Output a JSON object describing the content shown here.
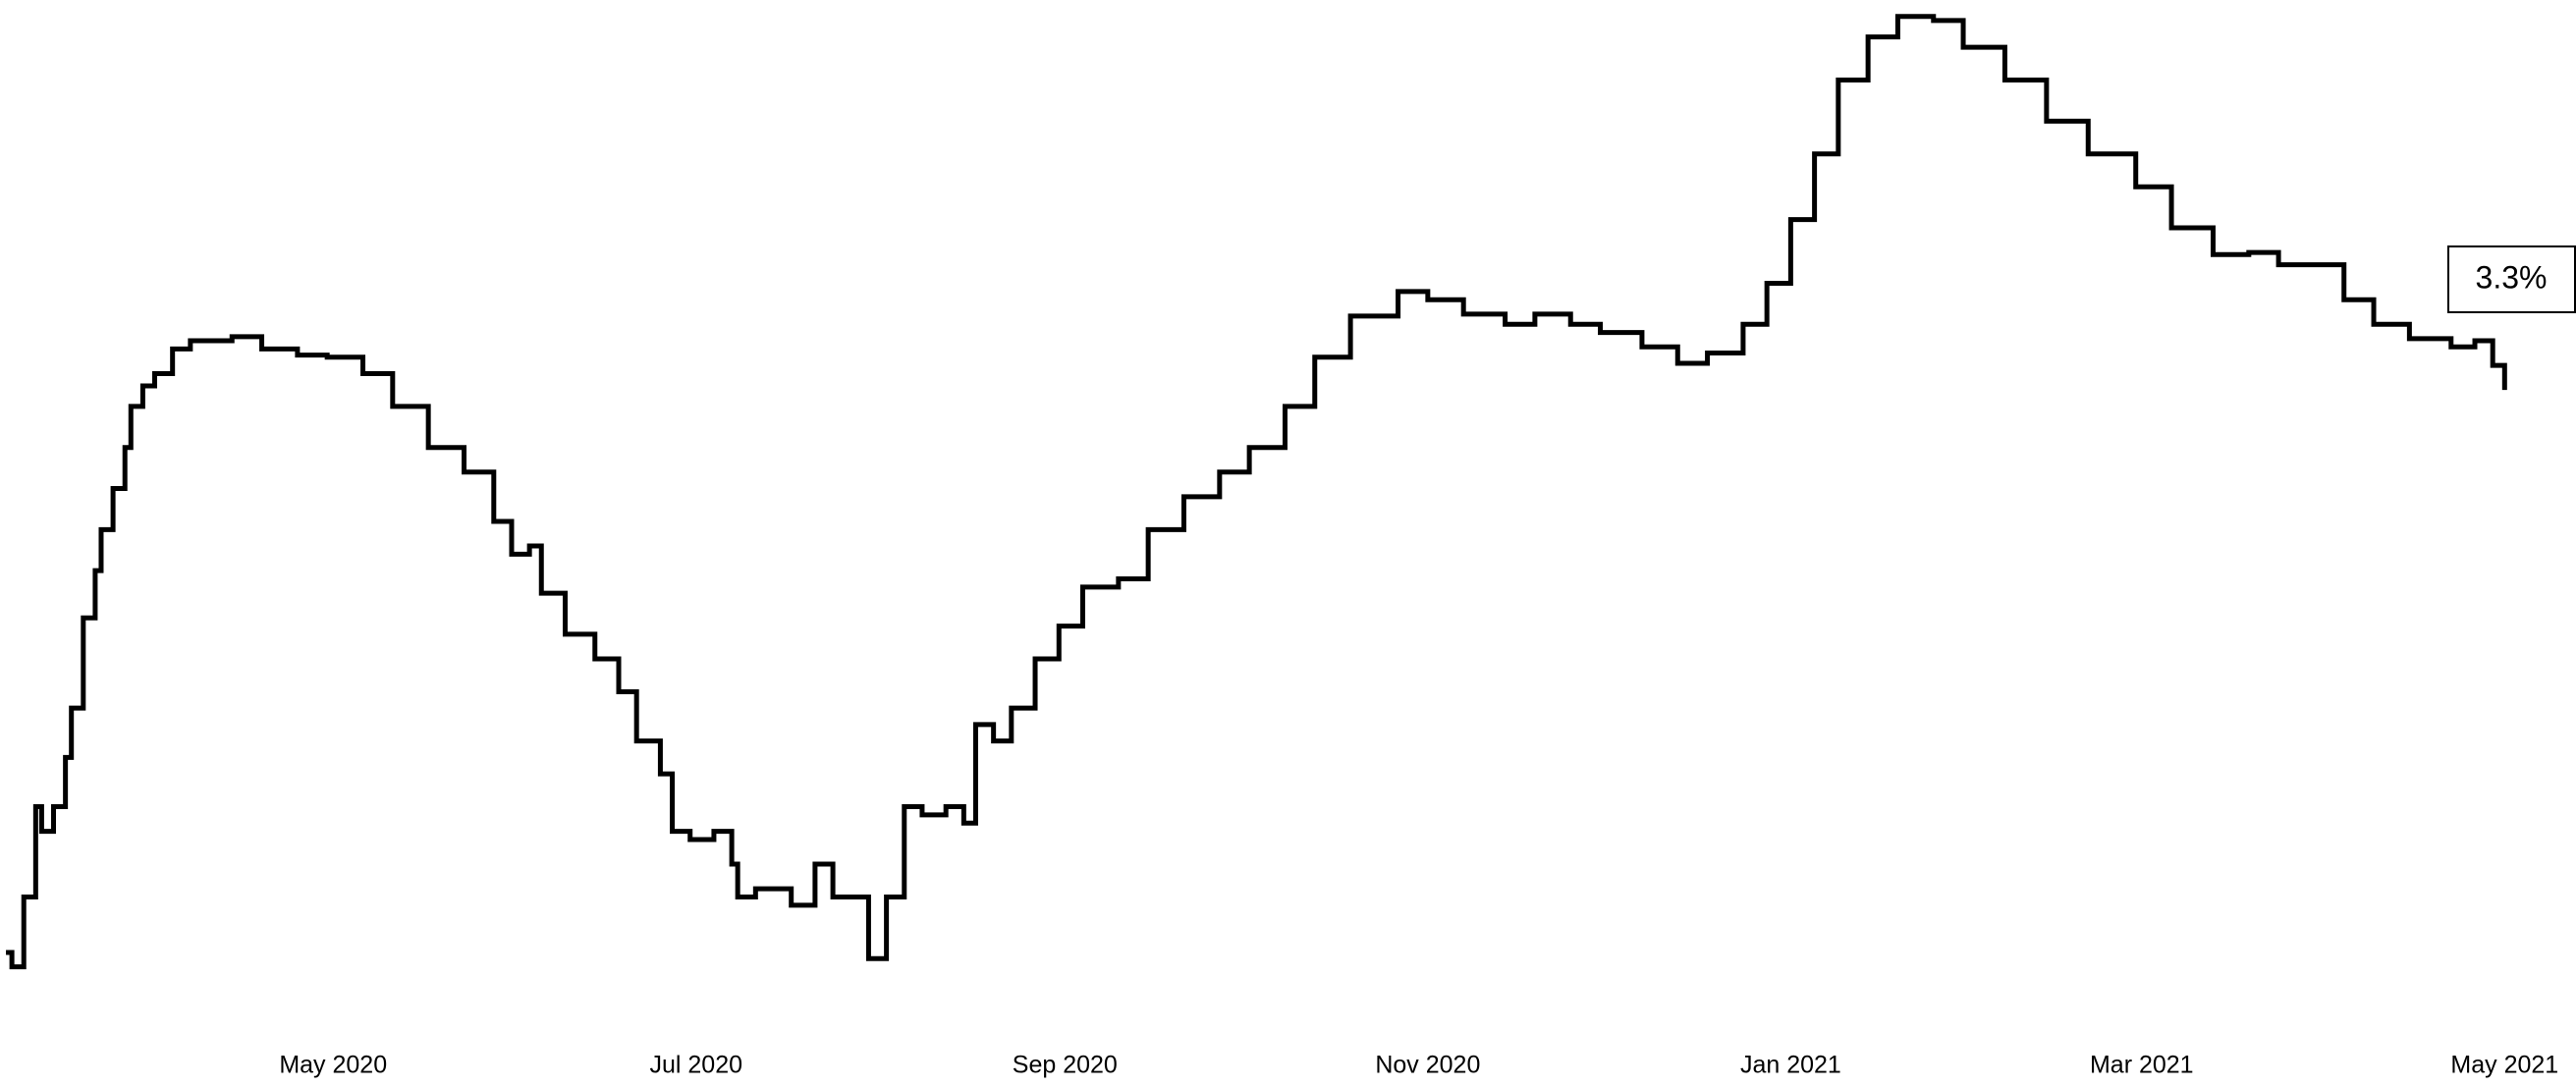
{
  "chart_data": {
    "type": "step",
    "x": [
      -55,
      -54,
      -52,
      -50,
      -49,
      -47,
      -45,
      -44,
      -42,
      -40,
      -39,
      -37,
      -35,
      -34,
      -32,
      -30,
      -27,
      -24,
      -17,
      -12,
      -6,
      -1,
      5,
      10,
      16,
      22,
      27,
      30,
      33,
      35,
      39,
      44,
      48,
      51,
      55,
      57,
      60,
      64,
      67,
      68,
      71,
      74,
      77,
      81,
      84,
      86,
      90,
      93,
      96,
      99,
      103,
      106,
      108,
      111,
      114,
      118,
      122,
      126,
      132,
      137,
      143,
      149,
      154,
      160,
      165,
      171,
      179,
      184,
      190,
      197,
      202,
      208,
      213,
      220,
      226,
      231,
      237,
      241,
      245,
      249,
      253,
      258,
      263,
      269,
      274,
      281,
      288,
      295,
      303,
      309,
      316,
      322,
      327,
      332,
      338,
      343,
      349,
      356,
      360,
      363,
      365
    ],
    "values": [
      0.56,
      0.49,
      0.83,
      1.27,
      1.15,
      1.27,
      1.51,
      1.75,
      2.19,
      2.42,
      2.62,
      2.82,
      3.02,
      3.22,
      3.32,
      3.38,
      3.5,
      3.54,
      3.56,
      3.5,
      3.47,
      3.46,
      3.38,
      3.22,
      3.02,
      2.9,
      2.66,
      2.5,
      2.54,
      2.31,
      2.11,
      1.99,
      1.83,
      1.59,
      1.43,
      1.15,
      1.11,
      1.15,
      0.99,
      0.83,
      0.87,
      0.87,
      0.79,
      0.99,
      0.83,
      0.83,
      0.53,
      0.83,
      1.27,
      1.23,
      1.27,
      1.19,
      1.67,
      1.59,
      1.75,
      1.99,
      2.15,
      2.34,
      2.38,
      2.62,
      2.78,
      2.9,
      3.02,
      3.22,
      3.46,
      3.66,
      3.78,
      3.74,
      3.67,
      3.62,
      3.67,
      3.62,
      3.58,
      3.51,
      3.43,
      3.48,
      3.62,
      3.82,
      4.13,
      4.45,
      4.81,
      5.02,
      5.12,
      5.1,
      4.97,
      4.81,
      4.61,
      4.45,
      4.29,
      4.09,
      3.96,
      3.97,
      3.91,
      3.91,
      3.74,
      3.62,
      3.55,
      3.51,
      3.54,
      3.42,
      3.3
    ],
    "color": "#000000",
    "xlim": [
      -56,
      377
    ],
    "ylim": [
      0,
      5.2
    ],
    "xticks": [
      {
        "value": 0,
        "label": "May 2020"
      },
      {
        "value": 61,
        "label": "Jul 2020"
      },
      {
        "value": 123,
        "label": "Sep 2020"
      },
      {
        "value": 184,
        "label": "Nov 2020"
      },
      {
        "value": 245,
        "label": "Jan 2021"
      },
      {
        "value": 304,
        "label": "Mar 2021"
      },
      {
        "value": 365,
        "label": "May 2021"
      }
    ],
    "annotation": "3.3%"
  }
}
